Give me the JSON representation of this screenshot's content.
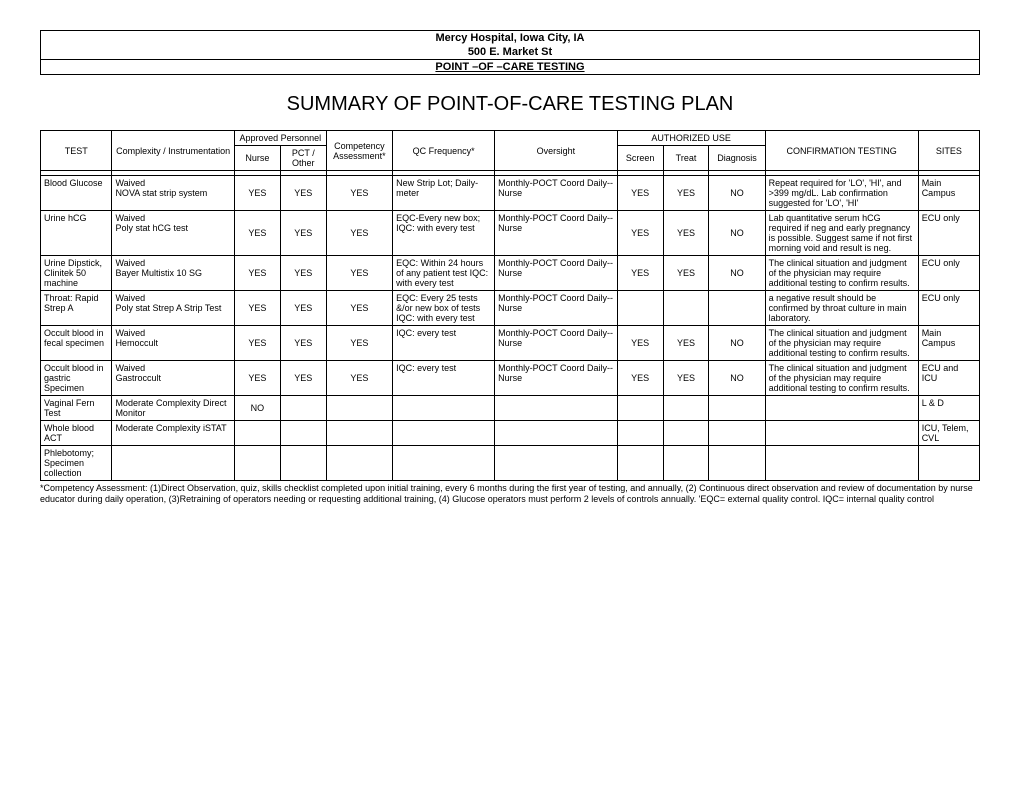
{
  "header": {
    "line1": "Mercy Hospital, Iowa City, IA",
    "line2": "500 E. Market St",
    "line3": "POINT –OF –CARE TESTING"
  },
  "title": "SUMMARY OF POINT-OF-CARE TESTING PLAN",
  "table": {
    "headers": {
      "test": "TEST",
      "complexity": "Complexity / Instrumentation",
      "approved_personnel": "Approved Personnel",
      "nurse": "Nurse",
      "pct_other": "PCT / Other",
      "competency": "Competency Assessment*",
      "qc": "QC Frequency*",
      "oversight": "Oversight",
      "authorized_use": "AUTHORIZED USE",
      "screen": "Screen",
      "treat": "Treat",
      "diagnosis": "Diagnosis",
      "confirmation": "CONFIRMATION TESTING",
      "sites": "SITES"
    },
    "rows": [
      {
        "test": "Blood Glucose",
        "complexity": "Waived\nNOVA stat strip system",
        "nurse": "YES",
        "other": "YES",
        "competency": "YES",
        "qc": "New Strip Lot; Daily-meter",
        "oversight": "Monthly-POCT Coord Daily--Nurse",
        "screen": "YES",
        "treat": "YES",
        "diagnosis": "NO",
        "confirmation": "Repeat required for 'LO', 'HI', and >399 mg/dL. Lab confirmation suggested for 'LO', 'HI'",
        "sites": "Main Campus"
      },
      {
        "test": "Urine hCG",
        "complexity": "Waived\nPoly stat hCG test",
        "nurse": "YES",
        "other": "YES",
        "competency": "YES",
        "qc": "EQC-Every new box; IQC: with every test",
        "oversight": "Monthly-POCT Coord Daily--Nurse",
        "screen": "YES",
        "treat": "YES",
        "diagnosis": "NO",
        "confirmation": "Lab quantitative serum hCG required if neg and early pregnancy is possible. Suggest same if not first morning void and result is neg.",
        "sites": "ECU only"
      },
      {
        "test": "Urine Dipstick, Clinitek 50 machine",
        "complexity": "Waived\nBayer Multistix 10 SG",
        "nurse": "YES",
        "other": "YES",
        "competency": "YES",
        "qc": "EQC: Within 24 hours of any patient test IQC: with every test",
        "oversight": "Monthly-POCT Coord Daily--Nurse",
        "screen": "YES",
        "treat": "YES",
        "diagnosis": "NO",
        "confirmation": "The clinical situation and judgment of the physician may require additional testing to confirm results.",
        "sites": "ECU only"
      },
      {
        "test": "Throat: Rapid Strep A",
        "complexity": "Waived\nPoly stat Strep A Strip Test",
        "nurse": "YES",
        "other": "YES",
        "competency": "YES",
        "qc": "EQC: Every 25 tests &/or new box of tests IQC: with every test",
        "oversight": "Monthly-POCT Coord Daily--Nurse",
        "screen": "",
        "treat": "",
        "diagnosis": "",
        "confirmation": "a negative result should be confirmed by throat culture in main laboratory.",
        "sites": "ECU only"
      },
      {
        "test": "Occult blood in fecal specimen",
        "complexity": "Waived\nHemoccult",
        "nurse": "YES",
        "other": "YES",
        "competency": "YES",
        "qc": "IQC: every test",
        "oversight": "Monthly-POCT Coord Daily--Nurse",
        "screen": "YES",
        "treat": "YES",
        "diagnosis": "NO",
        "confirmation": "The clinical situation and judgment of the physician may require additional testing to confirm results.",
        "sites": "Main Campus"
      },
      {
        "test": "Occult blood in gastric Specimen",
        "complexity": "Waived\nGastroccult",
        "nurse": "YES",
        "other": "YES",
        "competency": "YES",
        "qc": "IQC: every test",
        "oversight": "Monthly-POCT Coord Daily--Nurse",
        "screen": "YES",
        "treat": "YES",
        "diagnosis": "NO",
        "confirmation": "The clinical situation and judgment of the physician may require additional testing to confirm results.",
        "sites": "ECU and ICU"
      },
      {
        "test": "Vaginal Fern Test",
        "complexity": "Moderate Complexity Direct Monitor",
        "nurse": "NO",
        "other": "",
        "competency": "",
        "qc": "",
        "oversight": "",
        "screen": "",
        "treat": "",
        "diagnosis": "",
        "confirmation": "",
        "sites": "L & D"
      },
      {
        "test": "Whole blood ACT",
        "complexity": "Moderate Complexity iSTAT",
        "nurse": "",
        "other": "",
        "competency": "",
        "qc": "",
        "oversight": "",
        "screen": "",
        "treat": "",
        "diagnosis": "",
        "confirmation": "",
        "sites": "ICU, Telem, CVL"
      },
      {
        "test": "Phlebotomy; Specimen collection",
        "complexity": "",
        "nurse": "",
        "other": "",
        "competency": "",
        "qc": "",
        "oversight": "",
        "screen": "",
        "treat": "",
        "diagnosis": "",
        "confirmation": "",
        "sites": ""
      }
    ]
  },
  "footnote": "*Competency Assessment: (1)Direct Observation, quiz, skills checklist completed upon initial training, every 6 months during the first year of testing, and annually, (2) Continuous direct observation and review of documentation by nurse educator during daily operation, (3)Retraining of operators needing or requesting additional training, (4) Glucose operators must perform 2 levels of controls annually. 'EQC= external quality control. IQC= internal quality control",
  "styling": {
    "page_bg": "#ffffff",
    "border_color": "#000000",
    "font_family": "Arial",
    "title_fontsize": 20,
    "body_fontsize": 9,
    "header_fontsize": 11
  }
}
